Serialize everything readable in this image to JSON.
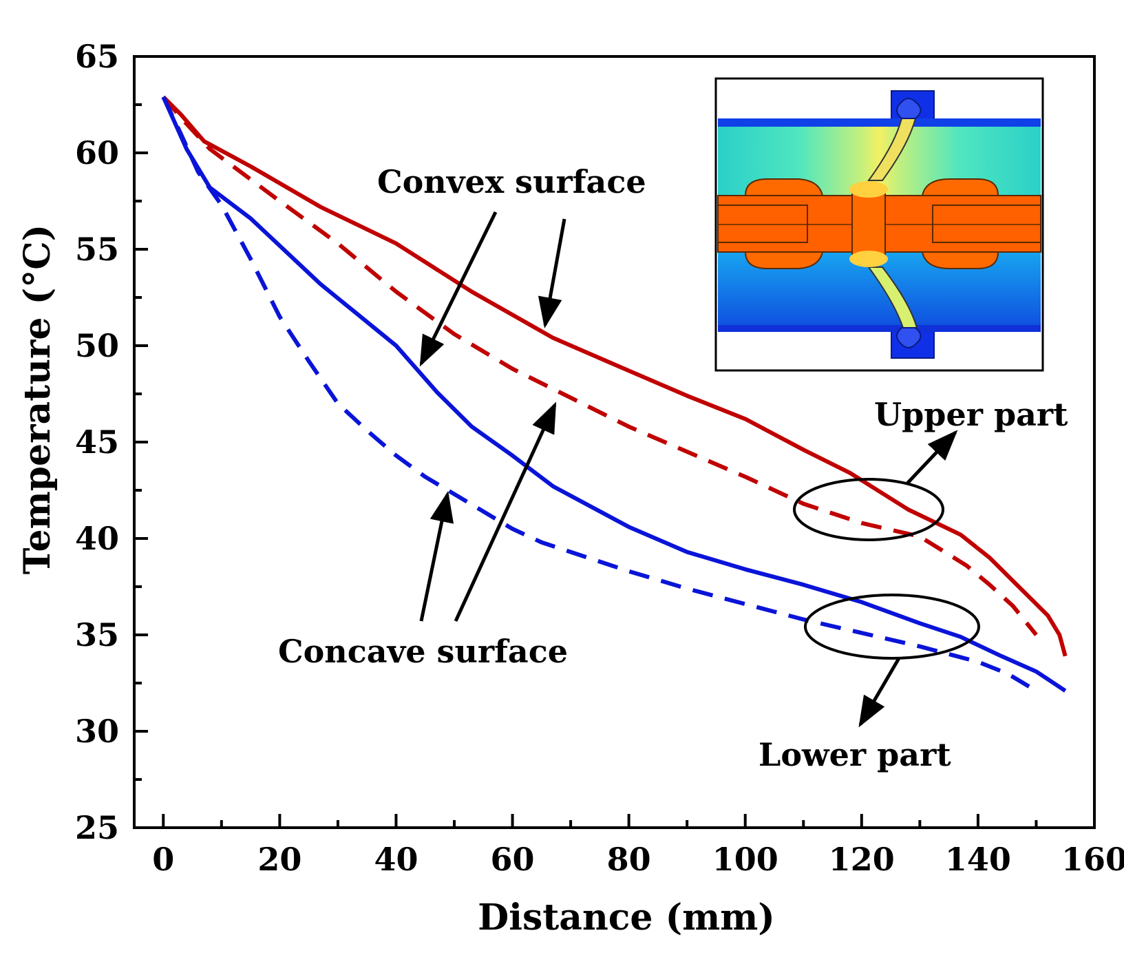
{
  "chart_data": {
    "type": "line",
    "xlabel": "Distance (mm)",
    "ylabel": "Temperature (°C)",
    "xlim": [
      -5,
      160
    ],
    "ylim": [
      25,
      65
    ],
    "xticks": [
      0,
      20,
      40,
      60,
      80,
      100,
      120,
      140,
      160
    ],
    "yticks": [
      25,
      30,
      35,
      40,
      45,
      50,
      55,
      60,
      65
    ],
    "grid": false,
    "colors": {
      "red": "#c00000",
      "blue": "#0a14d8"
    },
    "series": [
      {
        "name": "Upper part - convex surface",
        "color": "#c00000",
        "dash": false,
        "x": [
          0,
          3,
          7,
          15,
          27,
          40,
          53,
          67,
          80,
          90,
          100,
          110,
          118,
          128,
          137,
          142,
          146,
          149,
          152,
          154,
          155
        ],
        "y": [
          62.9,
          62,
          60.6,
          59.3,
          57.2,
          55.3,
          52.8,
          50.4,
          48.7,
          47.4,
          46.2,
          44.6,
          43.4,
          41.5,
          40.2,
          39,
          37.8,
          36.9,
          36,
          35,
          33.9
        ]
      },
      {
        "name": "Upper part - concave surface",
        "color": "#c00000",
        "dash": true,
        "x": [
          0,
          4,
          8,
          20,
          30,
          40,
          50,
          60,
          70,
          80,
          90,
          100,
          110,
          120,
          130,
          138,
          142,
          146,
          150
        ],
        "y": [
          62.9,
          61.5,
          60.2,
          57.5,
          55.3,
          52.8,
          50.6,
          48.8,
          47.3,
          45.8,
          44.5,
          43.2,
          41.8,
          40.8,
          40.1,
          38.6,
          37.6,
          36.5,
          35
        ]
      },
      {
        "name": "Lower part - convex surface",
        "color": "#0a14d8",
        "dash": false,
        "x": [
          0,
          4,
          8,
          15,
          27,
          40,
          47,
          53,
          60,
          67,
          80,
          90,
          100,
          110,
          120,
          130,
          137,
          144,
          150,
          153,
          155
        ],
        "y": [
          62.9,
          60.2,
          58.2,
          56.6,
          53.2,
          50,
          47.6,
          45.8,
          44.3,
          42.7,
          40.6,
          39.3,
          38.4,
          37.6,
          36.7,
          35.6,
          34.9,
          33.9,
          33.1,
          32.5,
          32.1
        ]
      },
      {
        "name": "Lower part - concave surface",
        "color": "#0a14d8",
        "dash": true,
        "x": [
          0,
          3,
          6,
          10,
          15,
          20,
          25,
          30,
          35,
          40,
          45,
          50,
          55,
          60,
          65,
          70,
          80,
          90,
          100,
          110,
          120,
          130,
          140,
          145,
          150
        ],
        "y": [
          62.9,
          61,
          59,
          57.3,
          54.5,
          51.5,
          49.2,
          47,
          45.6,
          44.3,
          43.2,
          42.3,
          41.4,
          40.5,
          39.8,
          39.3,
          38.3,
          37.4,
          36.6,
          35.8,
          35.1,
          34.4,
          33.6,
          33,
          32.1
        ]
      }
    ],
    "annotations": [
      {
        "text": "Convex surface"
      },
      {
        "text": "Concave surface"
      },
      {
        "text": "Upper part"
      },
      {
        "text": "Lower part"
      }
    ],
    "inset": {
      "description": "temperature field contour of joint cross-section"
    }
  }
}
